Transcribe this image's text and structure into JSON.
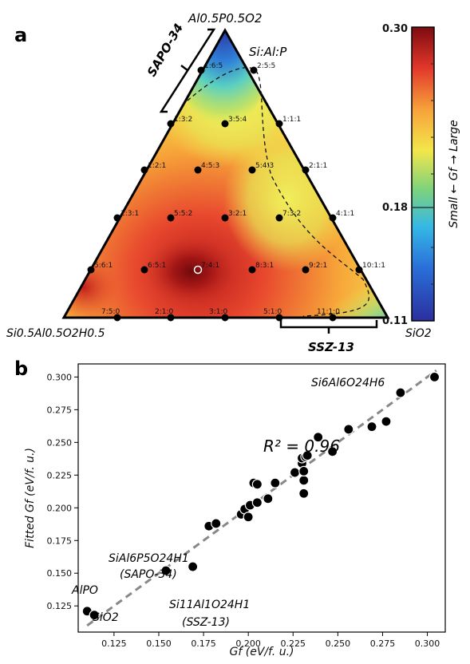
{
  "panel_a": {
    "letter": "a",
    "vertex_top": "Al0.5P0.5O2",
    "vertex_left": "Si0.5Al0.5O2H0.5",
    "vertex_right": "SiO2",
    "ratio_header": "Si:Al:P",
    "bracket_left_label": "SAPO-34",
    "bracket_bottom_label": "SSZ-13",
    "colorbar": {
      "max_label": "0.30",
      "mid_label": "0.18",
      "min_label": "0.11",
      "title": "Small ← Gf → Large"
    },
    "colors": {
      "low": "#2b2f9e",
      "mid": "#f3e64a",
      "high": "#7e0b10"
    },
    "points": [
      {
        "label": "1:6:5"
      },
      {
        "label": "2:5:5"
      },
      {
        "label": "1:3:2"
      },
      {
        "label": "3:5:4"
      },
      {
        "label": "1:1:1"
      },
      {
        "label": "1:2:1"
      },
      {
        "label": "4:5:3"
      },
      {
        "label": "5:4:3"
      },
      {
        "label": "2:1:1"
      },
      {
        "label": "2:3:1"
      },
      {
        "label": "5:5:2"
      },
      {
        "label": "3:2:1"
      },
      {
        "label": "7:3:2"
      },
      {
        "label": "4:1:1"
      },
      {
        "label": "5:6:1"
      },
      {
        "label": "6:5:1"
      },
      {
        "label": "7:4:1"
      },
      {
        "label": "8:3:1"
      },
      {
        "label": "9:2:1"
      },
      {
        "label": "10:1:1"
      },
      {
        "label": "7:5:0"
      },
      {
        "label": "2:1:0"
      },
      {
        "label": "3:1:0"
      },
      {
        "label": "5:1:0"
      },
      {
        "label": "11:1:0"
      }
    ]
  },
  "panel_b": {
    "letter": "b",
    "r2_text": "R² = 0.96",
    "ann_top_right": "Si6Al6O24H6",
    "ann_sapo_formula": "SiAl6P5O24H1",
    "ann_sapo_name": "(SAPO-34)",
    "ann_ssz_formula": "Si11Al1O24H1",
    "ann_ssz_name": "(SSZ-13)",
    "ann_alpo": "AlPO",
    "ann_sio2": "SiO2"
  },
  "chart_data": {
    "type": "scatter",
    "title": "",
    "xlabel": "Gf (eV/f. u.)",
    "ylabel": "Fitted Gf (eV/f. u.)",
    "xlim": [
      0.105,
      0.31
    ],
    "ylim": [
      0.105,
      0.31
    ],
    "x_ticks": [
      "0.125",
      "0.150",
      "0.175",
      "0.200",
      "0.225",
      "0.250",
      "0.275",
      "0.300"
    ],
    "y_ticks": [
      "0.125",
      "0.150",
      "0.175",
      "0.200",
      "0.225",
      "0.250",
      "0.275",
      "0.300"
    ],
    "fit_line": {
      "x": [
        0.11,
        0.305
      ],
      "y": [
        0.11,
        0.305
      ],
      "style": "dashed gray"
    },
    "points": [
      {
        "x": 0.11,
        "y": 0.121
      },
      {
        "x": 0.114,
        "y": 0.118
      },
      {
        "x": 0.154,
        "y": 0.152
      },
      {
        "x": 0.169,
        "y": 0.155
      },
      {
        "x": 0.178,
        "y": 0.186
      },
      {
        "x": 0.182,
        "y": 0.188
      },
      {
        "x": 0.196,
        "y": 0.195
      },
      {
        "x": 0.198,
        "y": 0.199
      },
      {
        "x": 0.2,
        "y": 0.193
      },
      {
        "x": 0.201,
        "y": 0.202
      },
      {
        "x": 0.203,
        "y": 0.219
      },
      {
        "x": 0.205,
        "y": 0.204
      },
      {
        "x": 0.205,
        "y": 0.218
      },
      {
        "x": 0.211,
        "y": 0.207
      },
      {
        "x": 0.215,
        "y": 0.219
      },
      {
        "x": 0.226,
        "y": 0.227
      },
      {
        "x": 0.23,
        "y": 0.234
      },
      {
        "x": 0.23,
        "y": 0.238
      },
      {
        "x": 0.231,
        "y": 0.211
      },
      {
        "x": 0.231,
        "y": 0.221
      },
      {
        "x": 0.231,
        "y": 0.228
      },
      {
        "x": 0.232,
        "y": 0.239
      },
      {
        "x": 0.233,
        "y": 0.24
      },
      {
        "x": 0.239,
        "y": 0.254
      },
      {
        "x": 0.247,
        "y": 0.243
      },
      {
        "x": 0.256,
        "y": 0.26
      },
      {
        "x": 0.269,
        "y": 0.262
      },
      {
        "x": 0.277,
        "y": 0.266
      },
      {
        "x": 0.285,
        "y": 0.288
      },
      {
        "x": 0.304,
        "y": 0.3
      }
    ],
    "grid": false
  }
}
